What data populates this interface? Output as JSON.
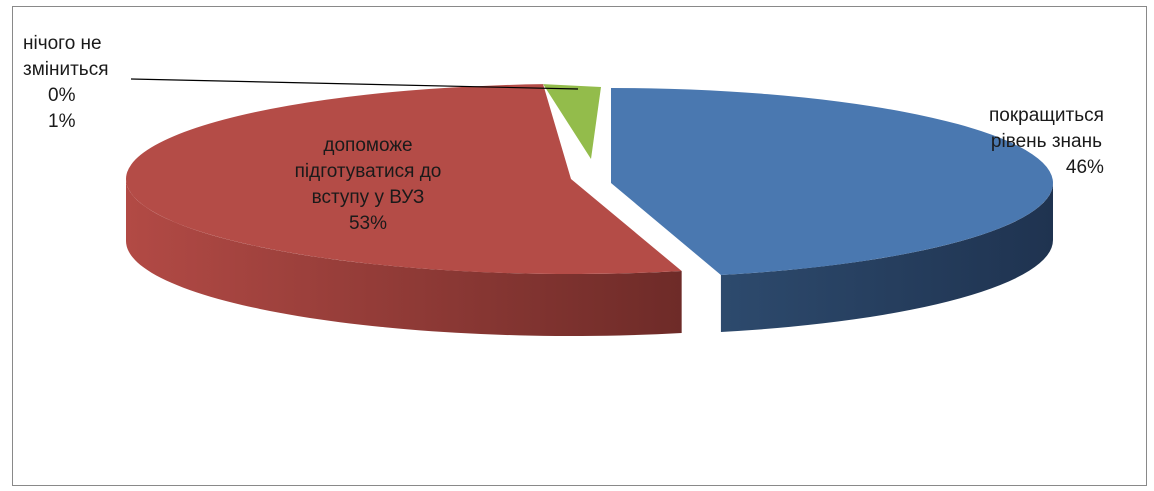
{
  "chart_data": {
    "type": "pie",
    "style": "3d-exploded-perspective",
    "title": "",
    "slices": [
      {
        "label_lines": [
          "покращиться",
          "рівень знань"
        ],
        "percent_label": "46%",
        "value": 46,
        "color": "#4a78b0",
        "side_color": "#2a4566"
      },
      {
        "label_lines": [
          "допоможе",
          "підготуватися до",
          "вступу у ВУЗ"
        ],
        "percent_label": "53%",
        "value": 53,
        "color": "#b44c47",
        "side_color": "#7e312d"
      },
      {
        "label_lines": [
          "нічого не",
          "зміниться"
        ],
        "percent_label": "0%",
        "value": 0,
        "color": "#93bc4b",
        "side_color": "#6a8a34"
      },
      {
        "label_lines": [],
        "percent_label": "1%",
        "value": 1,
        "color": "#93bc4b",
        "side_color": "#6a8a34"
      }
    ],
    "legend": "none",
    "data_labels": "outside-and-inside"
  }
}
